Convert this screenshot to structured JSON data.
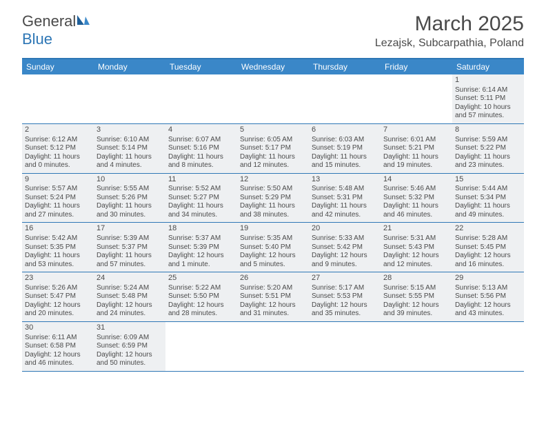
{
  "logo": {
    "word1": "General",
    "word2": "Blue"
  },
  "title": "March 2025",
  "location": "Lezajsk, Subcarpathia, Poland",
  "colors": {
    "header_bar": "#3a87c8",
    "border": "#2d76b5",
    "cell_bg": "#eef0f2",
    "text": "#4a4a4a",
    "white": "#ffffff"
  },
  "days_of_week": [
    "Sunday",
    "Monday",
    "Tuesday",
    "Wednesday",
    "Thursday",
    "Friday",
    "Saturday"
  ],
  "weeks": [
    [
      {
        "n": "",
        "sr": "",
        "ss": "",
        "dl": ""
      },
      {
        "n": "",
        "sr": "",
        "ss": "",
        "dl": ""
      },
      {
        "n": "",
        "sr": "",
        "ss": "",
        "dl": ""
      },
      {
        "n": "",
        "sr": "",
        "ss": "",
        "dl": ""
      },
      {
        "n": "",
        "sr": "",
        "ss": "",
        "dl": ""
      },
      {
        "n": "",
        "sr": "",
        "ss": "",
        "dl": ""
      },
      {
        "n": "1",
        "sr": "Sunrise: 6:14 AM",
        "ss": "Sunset: 5:11 PM",
        "dl": "Daylight: 10 hours and 57 minutes."
      }
    ],
    [
      {
        "n": "2",
        "sr": "Sunrise: 6:12 AM",
        "ss": "Sunset: 5:12 PM",
        "dl": "Daylight: 11 hours and 0 minutes."
      },
      {
        "n": "3",
        "sr": "Sunrise: 6:10 AM",
        "ss": "Sunset: 5:14 PM",
        "dl": "Daylight: 11 hours and 4 minutes."
      },
      {
        "n": "4",
        "sr": "Sunrise: 6:07 AM",
        "ss": "Sunset: 5:16 PM",
        "dl": "Daylight: 11 hours and 8 minutes."
      },
      {
        "n": "5",
        "sr": "Sunrise: 6:05 AM",
        "ss": "Sunset: 5:17 PM",
        "dl": "Daylight: 11 hours and 12 minutes."
      },
      {
        "n": "6",
        "sr": "Sunrise: 6:03 AM",
        "ss": "Sunset: 5:19 PM",
        "dl": "Daylight: 11 hours and 15 minutes."
      },
      {
        "n": "7",
        "sr": "Sunrise: 6:01 AM",
        "ss": "Sunset: 5:21 PM",
        "dl": "Daylight: 11 hours and 19 minutes."
      },
      {
        "n": "8",
        "sr": "Sunrise: 5:59 AM",
        "ss": "Sunset: 5:22 PM",
        "dl": "Daylight: 11 hours and 23 minutes."
      }
    ],
    [
      {
        "n": "9",
        "sr": "Sunrise: 5:57 AM",
        "ss": "Sunset: 5:24 PM",
        "dl": "Daylight: 11 hours and 27 minutes."
      },
      {
        "n": "10",
        "sr": "Sunrise: 5:55 AM",
        "ss": "Sunset: 5:26 PM",
        "dl": "Daylight: 11 hours and 30 minutes."
      },
      {
        "n": "11",
        "sr": "Sunrise: 5:52 AM",
        "ss": "Sunset: 5:27 PM",
        "dl": "Daylight: 11 hours and 34 minutes."
      },
      {
        "n": "12",
        "sr": "Sunrise: 5:50 AM",
        "ss": "Sunset: 5:29 PM",
        "dl": "Daylight: 11 hours and 38 minutes."
      },
      {
        "n": "13",
        "sr": "Sunrise: 5:48 AM",
        "ss": "Sunset: 5:31 PM",
        "dl": "Daylight: 11 hours and 42 minutes."
      },
      {
        "n": "14",
        "sr": "Sunrise: 5:46 AM",
        "ss": "Sunset: 5:32 PM",
        "dl": "Daylight: 11 hours and 46 minutes."
      },
      {
        "n": "15",
        "sr": "Sunrise: 5:44 AM",
        "ss": "Sunset: 5:34 PM",
        "dl": "Daylight: 11 hours and 49 minutes."
      }
    ],
    [
      {
        "n": "16",
        "sr": "Sunrise: 5:42 AM",
        "ss": "Sunset: 5:35 PM",
        "dl": "Daylight: 11 hours and 53 minutes."
      },
      {
        "n": "17",
        "sr": "Sunrise: 5:39 AM",
        "ss": "Sunset: 5:37 PM",
        "dl": "Daylight: 11 hours and 57 minutes."
      },
      {
        "n": "18",
        "sr": "Sunrise: 5:37 AM",
        "ss": "Sunset: 5:39 PM",
        "dl": "Daylight: 12 hours and 1 minute."
      },
      {
        "n": "19",
        "sr": "Sunrise: 5:35 AM",
        "ss": "Sunset: 5:40 PM",
        "dl": "Daylight: 12 hours and 5 minutes."
      },
      {
        "n": "20",
        "sr": "Sunrise: 5:33 AM",
        "ss": "Sunset: 5:42 PM",
        "dl": "Daylight: 12 hours and 9 minutes."
      },
      {
        "n": "21",
        "sr": "Sunrise: 5:31 AM",
        "ss": "Sunset: 5:43 PM",
        "dl": "Daylight: 12 hours and 12 minutes."
      },
      {
        "n": "22",
        "sr": "Sunrise: 5:28 AM",
        "ss": "Sunset: 5:45 PM",
        "dl": "Daylight: 12 hours and 16 minutes."
      }
    ],
    [
      {
        "n": "23",
        "sr": "Sunrise: 5:26 AM",
        "ss": "Sunset: 5:47 PM",
        "dl": "Daylight: 12 hours and 20 minutes."
      },
      {
        "n": "24",
        "sr": "Sunrise: 5:24 AM",
        "ss": "Sunset: 5:48 PM",
        "dl": "Daylight: 12 hours and 24 minutes."
      },
      {
        "n": "25",
        "sr": "Sunrise: 5:22 AM",
        "ss": "Sunset: 5:50 PM",
        "dl": "Daylight: 12 hours and 28 minutes."
      },
      {
        "n": "26",
        "sr": "Sunrise: 5:20 AM",
        "ss": "Sunset: 5:51 PM",
        "dl": "Daylight: 12 hours and 31 minutes."
      },
      {
        "n": "27",
        "sr": "Sunrise: 5:17 AM",
        "ss": "Sunset: 5:53 PM",
        "dl": "Daylight: 12 hours and 35 minutes."
      },
      {
        "n": "28",
        "sr": "Sunrise: 5:15 AM",
        "ss": "Sunset: 5:55 PM",
        "dl": "Daylight: 12 hours and 39 minutes."
      },
      {
        "n": "29",
        "sr": "Sunrise: 5:13 AM",
        "ss": "Sunset: 5:56 PM",
        "dl": "Daylight: 12 hours and 43 minutes."
      }
    ],
    [
      {
        "n": "30",
        "sr": "Sunrise: 6:11 AM",
        "ss": "Sunset: 6:58 PM",
        "dl": "Daylight: 12 hours and 46 minutes."
      },
      {
        "n": "31",
        "sr": "Sunrise: 6:09 AM",
        "ss": "Sunset: 6:59 PM",
        "dl": "Daylight: 12 hours and 50 minutes."
      },
      {
        "n": "",
        "sr": "",
        "ss": "",
        "dl": ""
      },
      {
        "n": "",
        "sr": "",
        "ss": "",
        "dl": ""
      },
      {
        "n": "",
        "sr": "",
        "ss": "",
        "dl": ""
      },
      {
        "n": "",
        "sr": "",
        "ss": "",
        "dl": ""
      },
      {
        "n": "",
        "sr": "",
        "ss": "",
        "dl": ""
      }
    ]
  ]
}
